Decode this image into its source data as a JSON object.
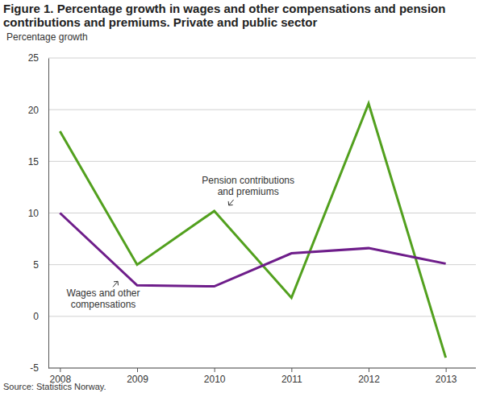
{
  "chart_data": {
    "type": "line",
    "title": "Figure 1. Percentage growth in wages and other compensations  and pension contributions and premiums. Private and public sector",
    "y_label": "Percentage growth",
    "source": "Source: Statistics Norway.",
    "categories": [
      "2008",
      "2009",
      "2010",
      "2011",
      "2012",
      "2013"
    ],
    "series": [
      {
        "name": "Pension contributions and premiums",
        "color": "#52a01e",
        "values": [
          17.9,
          5.0,
          10.2,
          1.8,
          20.6,
          -4.0
        ]
      },
      {
        "name": "Wages and other compensations",
        "color": "#6e1d8a",
        "values": [
          10.0,
          3.0,
          2.9,
          6.1,
          6.6,
          5.1
        ]
      }
    ],
    "ylim": [
      -5,
      25
    ],
    "yticks": [
      -5,
      0,
      5,
      10,
      15,
      20,
      25
    ],
    "grid": true
  }
}
